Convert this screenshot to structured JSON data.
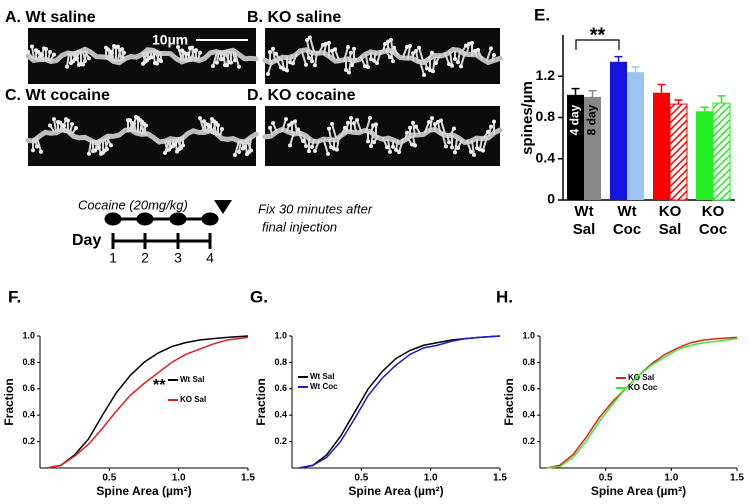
{
  "panels": [
    {
      "label": "A. Wt saline",
      "scale_bar": "10µm"
    },
    {
      "label": "B. KO saline"
    },
    {
      "label": "C. Wt cocaine"
    },
    {
      "label": "D. KO cocaine"
    }
  ],
  "timeline": {
    "drug": "Cocaine (20mg/kg)",
    "fix_note": [
      "Fix 30 minutes after",
      "final injection"
    ],
    "axis_label": "Day",
    "days": [
      "1",
      "2",
      "3",
      "4"
    ]
  },
  "chart_data": [
    {
      "type": "bar",
      "title": "E.",
      "ylabel": "spines/µm",
      "categories": [
        "Wt Sal",
        "Wt Coc",
        "KO Sal",
        "KO Coc"
      ],
      "series": [
        {
          "name": "4 day",
          "colors": [
            "#000000",
            "#1414dc",
            "#ff0000",
            "#22ee22"
          ],
          "hatch": [
            false,
            false,
            false,
            false
          ],
          "values": [
            1.02,
            1.34,
            1.04,
            0.86
          ],
          "errors": [
            0.06,
            0.05,
            0.08,
            0.04
          ]
        },
        {
          "name": "8 day",
          "colors": [
            "#888888",
            "#9cc4f0",
            "#ff0000",
            "#22ee22"
          ],
          "hatch": [
            false,
            false,
            true,
            true
          ],
          "values": [
            1.0,
            1.24,
            0.93,
            0.94
          ],
          "errors": [
            0.06,
            0.05,
            0.04,
            0.07
          ]
        }
      ],
      "ylim": [
        0,
        1.6
      ],
      "yticks": [
        0,
        0.4,
        0.8,
        1.2
      ],
      "annotation": "**"
    },
    {
      "type": "line",
      "title": "F.",
      "xlabel": "Spine Area (µm²)",
      "ylabel": "Fraction",
      "x": [
        0.05,
        0.15,
        0.25,
        0.35,
        0.45,
        0.55,
        0.65,
        0.75,
        0.85,
        0.95,
        1.05,
        1.15,
        1.25,
        1.35,
        1.5
      ],
      "series": [
        {
          "name": "Wt Sal",
          "color": "#000000",
          "values": [
            0,
            0.02,
            0.1,
            0.22,
            0.4,
            0.57,
            0.7,
            0.8,
            0.87,
            0.92,
            0.95,
            0.97,
            0.98,
            0.99,
            1.0
          ]
        },
        {
          "name": "KO Sal",
          "color": "#e02020",
          "values": [
            0,
            0.02,
            0.09,
            0.18,
            0.3,
            0.43,
            0.55,
            0.64,
            0.72,
            0.8,
            0.86,
            0.9,
            0.94,
            0.97,
            0.99
          ]
        }
      ],
      "xlim": [
        0,
        1.5
      ],
      "ylim": [
        0,
        1
      ],
      "xticks": [
        0.5,
        {
          "value": 1,
          "label": "1.0"
        },
        1.5
      ],
      "yticks": [
        0.2,
        0.4,
        0.6,
        0.8,
        {
          "value": 1,
          "label": "1.0"
        }
      ],
      "annotation": "**"
    },
    {
      "type": "line",
      "title": "G.",
      "xlabel": "Spine Area (µm²)",
      "ylabel": "Fraction",
      "x": [
        0.05,
        0.15,
        0.25,
        0.35,
        0.45,
        0.55,
        0.65,
        0.75,
        0.85,
        0.95,
        1.05,
        1.15,
        1.25,
        1.35,
        1.5
      ],
      "series": [
        {
          "name": "Wt Sal",
          "color": "#000000",
          "values": [
            0,
            0.02,
            0.1,
            0.24,
            0.42,
            0.6,
            0.73,
            0.83,
            0.89,
            0.93,
            0.95,
            0.97,
            0.98,
            0.99,
            1.0
          ]
        },
        {
          "name": "Wt Coc",
          "color": "#1a1acc",
          "values": [
            0,
            0.02,
            0.08,
            0.2,
            0.37,
            0.55,
            0.68,
            0.78,
            0.86,
            0.91,
            0.93,
            0.96,
            0.98,
            0.99,
            1.0
          ]
        }
      ],
      "xlim": [
        0,
        1.5
      ],
      "ylim": [
        0,
        1
      ],
      "xticks": [
        0.5,
        {
          "value": 1,
          "label": "1.0"
        },
        1.5
      ],
      "yticks": [
        0.2,
        0.4,
        0.6,
        0.8,
        {
          "value": 1,
          "label": "1.0"
        }
      ]
    },
    {
      "type": "line",
      "title": "H.",
      "xlabel": "Spine Area (µm²)",
      "ylabel": "Fraction",
      "x": [
        0.05,
        0.15,
        0.25,
        0.35,
        0.45,
        0.55,
        0.65,
        0.75,
        0.85,
        0.95,
        1.05,
        1.15,
        1.25,
        1.35,
        1.5
      ],
      "series": [
        {
          "name": "KO Sal",
          "color": "#e02020",
          "values": [
            0,
            0.02,
            0.1,
            0.23,
            0.38,
            0.5,
            0.6,
            0.7,
            0.79,
            0.86,
            0.91,
            0.95,
            0.97,
            0.98,
            0.99
          ]
        },
        {
          "name": "KO Coc",
          "color": "#33ee33",
          "values": [
            0,
            0.01,
            0.08,
            0.2,
            0.35,
            0.48,
            0.6,
            0.7,
            0.78,
            0.84,
            0.9,
            0.93,
            0.95,
            0.96,
            0.98
          ]
        }
      ],
      "xlim": [
        0,
        1.5
      ],
      "ylim": [
        0,
        1
      ],
      "xticks": [
        0.5,
        {
          "value": 1,
          "label": "1.0"
        },
        1.5
      ],
      "yticks": [
        0.2,
        0.4,
        0.6,
        0.8,
        {
          "value": 1,
          "label": "1.0"
        }
      ]
    }
  ]
}
